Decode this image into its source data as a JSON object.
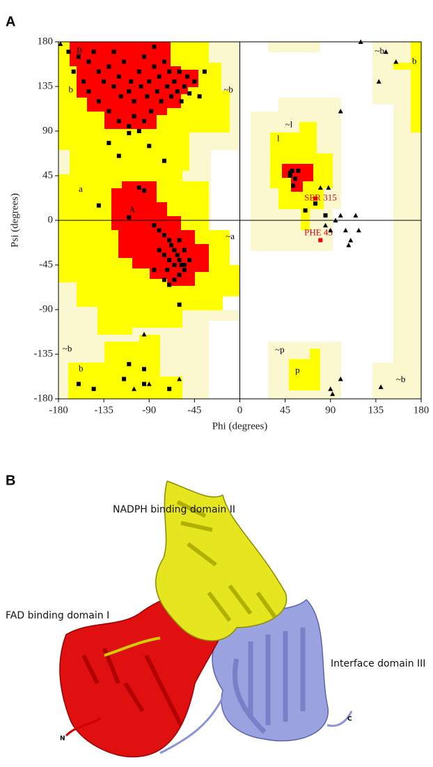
{
  "figure": {
    "panel_a": "A",
    "panel_b": "B"
  },
  "chart_data": {
    "type": "scatter",
    "xlabel": "Phi (degrees)",
    "ylabel": "Psi (degrees)",
    "xlim": [
      -180,
      180
    ],
    "ylim": [
      -180,
      180
    ],
    "xticks": [
      -180,
      -135,
      -90,
      -45,
      0,
      45,
      90,
      135,
      180
    ],
    "yticks": [
      -180,
      -135,
      -90,
      -45,
      0,
      45,
      90,
      135,
      180
    ],
    "series": [
      {
        "marker": "square",
        "color": "#000000",
        "x": [
          -170,
          -160,
          -150,
          -145,
          -140,
          -135,
          -130,
          -125,
          -120,
          -118,
          -115,
          -110,
          -108,
          -105,
          -100,
          -98,
          -95,
          -92,
          -90,
          -88,
          -85,
          -82,
          -80,
          -78,
          -75,
          -72,
          -70,
          -68,
          -65,
          -62,
          -60,
          -58,
          -55,
          -52,
          -50,
          -45,
          -40,
          -35,
          -140,
          -130,
          -120,
          -110,
          -100,
          -105,
          -155,
          -165,
          -150,
          -125,
          -95,
          -85,
          -130,
          -120,
          -90,
          -110,
          -75,
          -100,
          -95,
          -110,
          -140,
          -85,
          -80,
          -75,
          -70,
          -68,
          -65,
          -62,
          -60,
          -58,
          -55,
          -65,
          -70,
          -72,
          -60,
          -55,
          -50,
          -75,
          -80,
          -65,
          -70,
          -75,
          -60,
          -55,
          -85,
          -60,
          -160,
          -145,
          -115,
          -95,
          -110,
          -95,
          -70,
          50,
          52,
          53,
          50,
          55,
          58,
          65,
          75,
          85
        ],
        "y": [
          170,
          165,
          160,
          170,
          150,
          140,
          155,
          135,
          145,
          125,
          160,
          130,
          140,
          120,
          150,
          135,
          165,
          125,
          140,
          110,
          155,
          130,
          145,
          120,
          160,
          135,
          150,
          125,
          140,
          130,
          150,
          120,
          135,
          145,
          128,
          140,
          125,
          150,
          120,
          110,
          100,
          95,
          90,
          105,
          140,
          150,
          130,
          170,
          100,
          175,
          78,
          65,
          75,
          88,
          60,
          33,
          30,
          3,
          15,
          -5,
          -10,
          -15,
          -20,
          -25,
          -30,
          -35,
          -40,
          -45,
          -30,
          -45,
          -40,
          -50,
          -55,
          -50,
          -40,
          -35,
          -30,
          -60,
          -65,
          -60,
          -20,
          -45,
          -50,
          -85,
          -165,
          -170,
          -160,
          -165,
          -145,
          -150,
          -170,
          48,
          50,
          35,
          45,
          42,
          50,
          10,
          17,
          5
        ]
      },
      {
        "marker": "square",
        "color": "#e8000b",
        "x": [
          75,
          80
        ],
        "y": [
          22,
          -20
        ]
      },
      {
        "marker": "triangle",
        "color": "#000000",
        "x": [
          -178,
          120,
          145,
          155,
          138,
          100,
          80,
          88,
          90,
          95,
          100,
          105,
          110,
          108,
          115,
          118,
          92,
          100,
          140,
          -95,
          -90,
          -60,
          -105,
          90,
          85
        ],
        "y": [
          178,
          180,
          170,
          160,
          140,
          110,
          33,
          33,
          -10,
          0,
          5,
          -10,
          -20,
          -25,
          5,
          -10,
          -175,
          -160,
          -168,
          -115,
          -165,
          -160,
          -170,
          -170,
          -5
        ]
      }
    ],
    "annotations": [
      {
        "text": "B",
        "x": -162,
        "y": 170,
        "color": "#000000"
      },
      {
        "text": "b",
        "x": -170,
        "y": 131,
        "color": "#000000"
      },
      {
        "text": "A",
        "x": -110,
        "y": 10,
        "color": "#000000"
      },
      {
        "text": "a",
        "x": -160,
        "y": 31,
        "color": "#000000"
      },
      {
        "text": "~a",
        "x": -14,
        "y": -17,
        "color": "#000000"
      },
      {
        "text": "~b",
        "x": -16,
        "y": 131,
        "color": "#000000"
      },
      {
        "text": "~l",
        "x": 45,
        "y": 96,
        "color": "#000000"
      },
      {
        "text": "l",
        "x": 37,
        "y": 82,
        "color": "#000000"
      },
      {
        "text": "b",
        "x": 171,
        "y": 160,
        "color": "#000000"
      },
      {
        "text": "~b",
        "x": 134,
        "y": 170,
        "color": "#000000"
      },
      {
        "text": "~b",
        "x": -176,
        "y": -130,
        "color": "#000000"
      },
      {
        "text": "b",
        "x": -160,
        "y": -150,
        "color": "#000000"
      },
      {
        "text": "~p",
        "x": 35,
        "y": -131,
        "color": "#000000"
      },
      {
        "text": "p",
        "x": 55,
        "y": -152,
        "color": "#000000"
      },
      {
        "text": "~b",
        "x": 155,
        "y": -161,
        "color": "#000000"
      },
      {
        "text": "SER 315",
        "x": 64,
        "y": 22,
        "color": "#e8000b"
      },
      {
        "text": "PHE 45",
        "x": 64,
        "y": -13,
        "color": "#e8000b"
      }
    ]
  },
  "structure": {
    "domain_ii": "NADPH binding domain II",
    "domain_i": "FAD binding domain I",
    "domain_iii": "Interface domain III",
    "n_terminus": "N",
    "c_terminus": "C"
  }
}
